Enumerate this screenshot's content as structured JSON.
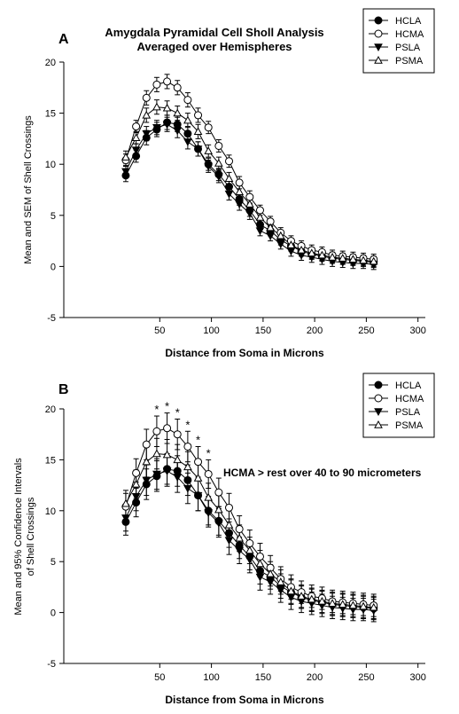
{
  "chart_data": [
    {
      "type": "line",
      "panel_label": "A",
      "title": "Amygdala Pyramidal Cell Sholl Analysis",
      "subtitle": "Averaged over Hemispheres",
      "xlabel": "Distance from Soma in Microns",
      "ylabel": "Mean and SEM of Shell Crossings",
      "ylabel_line2": "",
      "xlim": [
        -50,
        300
      ],
      "ylim": [
        -5,
        20
      ],
      "xticks": [
        "50",
        "100",
        "150",
        "200",
        "250",
        "300"
      ],
      "yticks": [
        "-5",
        "0",
        "5",
        "10",
        "15",
        "20"
      ],
      "legend_position": "top-right",
      "x": [
        10,
        20,
        30,
        40,
        50,
        60,
        70,
        80,
        90,
        100,
        110,
        120,
        130,
        140,
        150,
        160,
        170,
        180,
        190,
        200,
        210,
        220,
        230,
        240,
        250
      ],
      "series": [
        {
          "name": "HCLA",
          "marker": "filled-circle",
          "values": [
            8.9,
            10.8,
            12.6,
            13.4,
            14.1,
            13.9,
            13.0,
            11.5,
            10.0,
            9.0,
            7.8,
            6.6,
            5.5,
            4.1,
            3.5,
            2.6,
            2.0,
            1.5,
            1.2,
            1.0,
            0.8,
            0.7,
            0.6,
            0.5,
            0.4
          ],
          "error": [
            0.6,
            0.6,
            0.7,
            0.7,
            0.7,
            0.7,
            0.7,
            0.7,
            0.6,
            0.6,
            0.6,
            0.6,
            0.6,
            0.5,
            0.5,
            0.5,
            0.5,
            0.5,
            0.5,
            0.5,
            0.5,
            0.5,
            0.5,
            0.5,
            0.5
          ]
        },
        {
          "name": "HCMA",
          "marker": "open-circle",
          "values": [
            10.4,
            13.7,
            16.5,
            17.8,
            18.1,
            17.5,
            16.3,
            14.8,
            13.6,
            11.8,
            10.3,
            8.2,
            6.8,
            5.5,
            4.4,
            3.3,
            2.5,
            2.0,
            1.6,
            1.4,
            1.1,
            1.0,
            0.9,
            0.8,
            0.7
          ]
        },
        {
          "name": "PSLA",
          "marker": "filled-triangle-down",
          "values": [
            9.3,
            11.4,
            13.0,
            13.6,
            13.9,
            13.3,
            12.2,
            11.5,
            9.8,
            8.8,
            7.1,
            6.1,
            5.2,
            3.5,
            3.0,
            2.2,
            1.5,
            1.1,
            0.9,
            0.7,
            0.5,
            0.4,
            0.3,
            0.3,
            0.2
          ]
        },
        {
          "name": "PSMA",
          "marker": "open-triangle-up",
          "values": [
            10.7,
            12.6,
            14.8,
            15.6,
            15.5,
            15.0,
            14.3,
            13.2,
            11.3,
            10.1,
            8.6,
            7.3,
            6.1,
            4.8,
            3.8,
            3.0,
            2.1,
            1.6,
            1.3,
            1.1,
            0.9,
            0.8,
            0.7,
            0.6,
            0.5
          ]
        }
      ]
    },
    {
      "type": "line",
      "panel_label": "B",
      "title": "",
      "xlabel": "Distance from Soma in Microns",
      "ylabel": "Mean and 95% Confidence Intervals",
      "ylabel_line2": "of Shell Crossings",
      "xlim": [
        -50,
        300
      ],
      "ylim": [
        -5,
        20
      ],
      "xticks": [
        "50",
        "100",
        "150",
        "200",
        "250",
        "300"
      ],
      "yticks": [
        "-5",
        "0",
        "5",
        "10",
        "15",
        "20"
      ],
      "legend_position": "top-right",
      "annotation": "HCMA > rest over 40 to 90 micrometers",
      "significance_marker": "*",
      "significance_x": [
        40,
        50,
        60,
        70,
        80,
        90
      ],
      "x": [
        10,
        20,
        30,
        40,
        50,
        60,
        70,
        80,
        90,
        100,
        110,
        120,
        130,
        140,
        150,
        160,
        170,
        180,
        190,
        200,
        210,
        220,
        230,
        240,
        250
      ],
      "series": [
        {
          "name": "HCLA",
          "marker": "filled-circle",
          "values": [
            8.9,
            10.8,
            12.6,
            13.4,
            14.1,
            13.9,
            13.0,
            11.5,
            10.0,
            9.0,
            7.8,
            6.6,
            5.5,
            4.1,
            3.5,
            2.6,
            2.0,
            1.5,
            1.2,
            1.0,
            0.8,
            0.7,
            0.6,
            0.5,
            0.4
          ],
          "error": [
            1.3,
            1.4,
            1.5,
            1.5,
            1.5,
            1.5,
            1.5,
            1.5,
            1.4,
            1.4,
            1.4,
            1.3,
            1.3,
            1.3,
            1.2,
            1.2,
            1.2,
            1.1,
            1.1,
            1.1,
            1.1,
            1.1,
            1.1,
            1.1,
            1.1
          ]
        },
        {
          "name": "HCMA",
          "marker": "open-circle",
          "values": [
            10.4,
            13.7,
            16.5,
            17.8,
            18.1,
            17.5,
            16.3,
            14.8,
            13.6,
            11.8,
            10.3,
            8.2,
            6.8,
            5.5,
            4.4,
            3.3,
            2.5,
            2.0,
            1.6,
            1.4,
            1.1,
            1.0,
            0.9,
            0.8,
            0.7
          ]
        },
        {
          "name": "PSLA",
          "marker": "filled-triangle-down",
          "values": [
            9.3,
            11.4,
            13.0,
            13.6,
            13.9,
            13.3,
            12.2,
            11.5,
            9.8,
            8.8,
            7.1,
            6.1,
            5.2,
            3.5,
            3.0,
            2.2,
            1.5,
            1.1,
            0.9,
            0.7,
            0.5,
            0.4,
            0.3,
            0.3,
            0.2
          ]
        },
        {
          "name": "PSMA",
          "marker": "open-triangle-up",
          "values": [
            10.7,
            12.6,
            14.8,
            15.6,
            15.5,
            15.0,
            14.3,
            13.2,
            11.3,
            10.1,
            8.6,
            7.3,
            6.1,
            4.8,
            3.8,
            3.0,
            2.1,
            1.6,
            1.3,
            1.1,
            0.9,
            0.8,
            0.7,
            0.6,
            0.5
          ]
        }
      ]
    }
  ]
}
